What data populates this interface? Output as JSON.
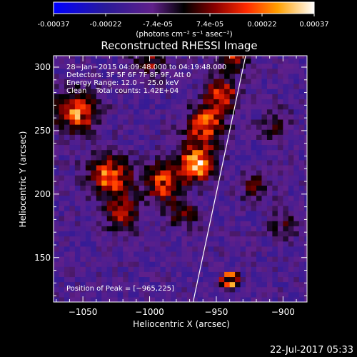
{
  "colorbar": {
    "ticks": [
      "-0.00037",
      "-0.00022",
      "-7.4e-05",
      "7.4e-05",
      "0.00022",
      "0.00037"
    ],
    "unit_label": "(photons cm⁻² s⁻¹ asec⁻²)",
    "range": [
      -0.00037,
      0.00037
    ]
  },
  "timestamp": "22-Jul-2017 05:33",
  "chart_data": {
    "type": "heatmap",
    "title": "Reconstructed RHESSI Image",
    "xlabel": "Heliocentric X (arcsec)",
    "ylabel": "Heliocentric Y (arcsec)",
    "xlim": [
      -1072,
      -882
    ],
    "ylim": [
      115,
      309
    ],
    "x_ticks": [
      -1050,
      -1000,
      -950,
      -900
    ],
    "y_ticks": [
      150,
      200,
      250,
      300
    ],
    "x_tick_labels": [
      "−1050",
      "−1000",
      "−950",
      "−900"
    ],
    "y_tick_labels": [
      "150",
      "200",
      "250",
      "300"
    ],
    "info_lines": [
      "28−Jan−2015 04:09:48.000 to 04:19:48.000",
      "Detectors: 3F 5F 6F 7F 8F 9F, Att 0",
      "Energy Range: 12.0 − 25.0 keV",
      "Clean    Total counts: 1.42E+04"
    ],
    "peak_label": "Position of Peak = [−965,225]",
    "peak_position": [
      -965,
      225
    ],
    "hot_spots": [
      {
        "x": -965,
        "y": 225,
        "amp": 1.0,
        "sigma": 9
      },
      {
        "x": -958,
        "y": 255,
        "amp": 0.75,
        "sigma": 10
      },
      {
        "x": -946,
        "y": 278,
        "amp": 0.6,
        "sigma": 9
      },
      {
        "x": -1055,
        "y": 265,
        "amp": 0.8,
        "sigma": 11
      },
      {
        "x": -1030,
        "y": 215,
        "amp": 0.75,
        "sigma": 11
      },
      {
        "x": -990,
        "y": 210,
        "amp": 0.7,
        "sigma": 10
      },
      {
        "x": -1020,
        "y": 185,
        "amp": 0.55,
        "sigma": 9
      },
      {
        "x": -975,
        "y": 185,
        "amp": 0.45,
        "sigma": 8
      },
      {
        "x": -938,
        "y": 310,
        "amp": 0.5,
        "sigma": 9
      },
      {
        "x": -920,
        "y": 205,
        "amp": 0.35,
        "sigma": 8
      },
      {
        "x": -905,
        "y": 255,
        "amp": 0.3,
        "sigma": 8
      },
      {
        "x": -1000,
        "y": 305,
        "amp": 0.4,
        "sigma": 9
      },
      {
        "x": -900,
        "y": 175,
        "amp": 0.3,
        "sigma": 7
      }
    ],
    "ring_source": {
      "x": -940,
      "y": 133,
      "radius": 4.5,
      "amp": 0.8
    },
    "limb_line": {
      "x": [
        -968,
        -928
      ],
      "y": [
        112,
        309
      ]
    }
  }
}
